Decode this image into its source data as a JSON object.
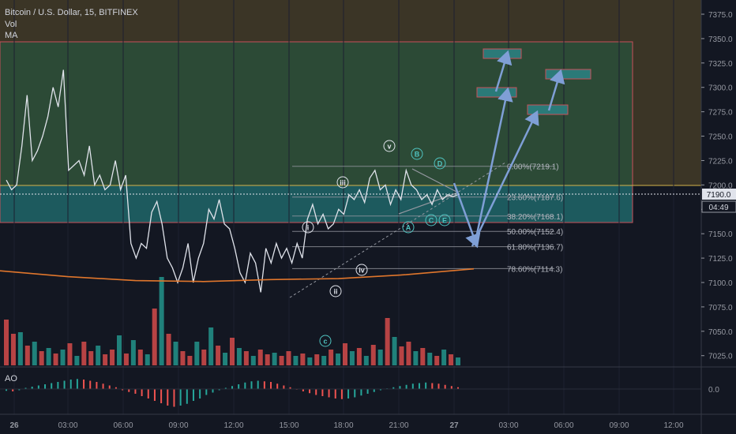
{
  "header": {
    "symbol_line": "Bitcoin / U.S. Dollar, 15, BITFINEX",
    "indicator_vol": "Vol",
    "indicator_ma": "MA"
  },
  "price_axis": {
    "ticks": [
      "7375.0",
      "7350.0",
      "7325.0",
      "7300.0",
      "7275.0",
      "7250.0",
      "7225.0",
      "7200.0",
      "7175.0",
      "7150.0",
      "7125.0",
      "7100.0",
      "7075.0",
      "7050.0",
      "7025.0"
    ],
    "current_price": "7190.0",
    "countdown": "04:49"
  },
  "time_axis": {
    "ticks": [
      "26",
      "03:00",
      "06:00",
      "09:00",
      "12:00",
      "15:00",
      "18:00",
      "21:00",
      "27",
      "03:00",
      "06:00",
      "09:00",
      "12:00"
    ]
  },
  "ao_panel": {
    "label": "AO",
    "zero_label": "0.0"
  },
  "fib_levels": [
    {
      "label": "0.00%(7219.1)",
      "price": 7219.1
    },
    {
      "label": "23.60%(7187.6)",
      "price": 7187.6
    },
    {
      "label": "38.20%(7168.1)",
      "price": 7168.1
    },
    {
      "label": "50.00%(7152.4)",
      "price": 7152.4
    },
    {
      "label": "61.80%(7136.7)",
      "price": 7136.7
    },
    {
      "label": "78.60%(7114.3)",
      "price": 7114.3
    }
  ],
  "wave_labels": [
    "i",
    "ii",
    "iii",
    "iv",
    "v",
    "A",
    "B",
    "C",
    "D",
    "E",
    "c"
  ],
  "colors": {
    "background": "#131722",
    "price_line": "#e0e3eb",
    "up_volume": "#26a69a",
    "down_volume": "#ef5350",
    "upper_zone": "#3b3526",
    "green_zone": "#2c4a36",
    "teal_zone": "#1d5a5e",
    "arrows": "#7f9fd6",
    "target_box": "#2b7a78",
    "ma_line": "#e0762c"
  },
  "chart_data": {
    "type": "line",
    "title": "Bitcoin / U.S. Dollar, 15, BITFINEX",
    "timeframe": "15",
    "ylim": [
      7010,
      7390
    ],
    "current_price": 7190.0,
    "close_series": [
      7205,
      7195,
      7200,
      7240,
      7292,
      7225,
      7235,
      7250,
      7270,
      7300,
      7280,
      7318,
      7215,
      7220,
      7225,
      7210,
      7240,
      7200,
      7210,
      7195,
      7200,
      7225,
      7195,
      7210,
      7140,
      7125,
      7140,
      7135,
      7172,
      7183,
      7160,
      7125,
      7115,
      7100,
      7115,
      7140,
      7100,
      7125,
      7140,
      7175,
      7165,
      7185,
      7160,
      7155,
      7135,
      7110,
      7100,
      7130,
      7120,
      7090,
      7135,
      7120,
      7140,
      7125,
      7135,
      7120,
      7140,
      7125,
      7165,
      7180,
      7160,
      7170,
      7155,
      7160,
      7175,
      7170,
      7190,
      7185,
      7195,
      7182,
      7207,
      7215,
      7195,
      7200,
      7180,
      7195,
      7185,
      7215,
      7200,
      7195,
      7185,
      7190,
      7180,
      7195,
      7185,
      7190,
      7188,
      7190
    ],
    "moving_average": [
      7112,
      7106,
      7102,
      7101,
      7103,
      7104,
      7108,
      7114
    ],
    "volume": [
      {
        "v": 58,
        "up": false
      },
      {
        "v": 40,
        "up": false
      },
      {
        "v": 42,
        "up": true
      },
      {
        "v": 25,
        "up": false
      },
      {
        "v": 30,
        "up": true
      },
      {
        "v": 18,
        "up": false
      },
      {
        "v": 22,
        "up": true
      },
      {
        "v": 15,
        "up": false
      },
      {
        "v": 20,
        "up": true
      },
      {
        "v": 28,
        "up": false
      },
      {
        "v": 12,
        "up": true
      },
      {
        "v": 30,
        "up": false
      },
      {
        "v": 18,
        "up": false
      },
      {
        "v": 25,
        "up": true
      },
      {
        "v": 14,
        "up": false
      },
      {
        "v": 20,
        "up": false
      },
      {
        "v": 38,
        "up": true
      },
      {
        "v": 15,
        "up": false
      },
      {
        "v": 32,
        "up": true
      },
      {
        "v": 20,
        "up": false
      },
      {
        "v": 14,
        "up": true
      },
      {
        "v": 72,
        "up": false
      },
      {
        "v": 112,
        "up": true
      },
      {
        "v": 40,
        "up": false
      },
      {
        "v": 30,
        "up": true
      },
      {
        "v": 18,
        "up": false
      },
      {
        "v": 12,
        "up": false
      },
      {
        "v": 30,
        "up": true
      },
      {
        "v": 20,
        "up": false
      },
      {
        "v": 48,
        "up": true
      },
      {
        "v": 25,
        "up": false
      },
      {
        "v": 16,
        "up": true
      },
      {
        "v": 35,
        "up": false
      },
      {
        "v": 22,
        "up": true
      },
      {
        "v": 18,
        "up": false
      },
      {
        "v": 12,
        "up": true
      },
      {
        "v": 20,
        "up": false
      },
      {
        "v": 14,
        "up": false
      },
      {
        "v": 16,
        "up": true
      },
      {
        "v": 12,
        "up": false
      },
      {
        "v": 18,
        "up": false
      },
      {
        "v": 12,
        "up": true
      },
      {
        "v": 15,
        "up": false
      },
      {
        "v": 10,
        "up": true
      },
      {
        "v": 14,
        "up": false
      },
      {
        "v": 12,
        "up": true
      },
      {
        "v": 20,
        "up": false
      },
      {
        "v": 15,
        "up": true
      },
      {
        "v": 28,
        "up": false
      },
      {
        "v": 18,
        "up": true
      },
      {
        "v": 22,
        "up": false
      },
      {
        "v": 12,
        "up": true
      },
      {
        "v": 26,
        "up": false
      },
      {
        "v": 20,
        "up": true
      },
      {
        "v": 60,
        "up": false
      },
      {
        "v": 36,
        "up": true
      },
      {
        "v": 24,
        "up": false
      },
      {
        "v": 30,
        "up": false
      },
      {
        "v": 18,
        "up": true
      },
      {
        "v": 22,
        "up": false
      },
      {
        "v": 16,
        "up": true
      },
      {
        "v": 12,
        "up": false
      },
      {
        "v": 20,
        "up": true
      },
      {
        "v": 14,
        "up": false
      },
      {
        "v": 10,
        "up": true
      }
    ],
    "ao": [
      -3,
      -4,
      -2,
      2,
      4,
      6,
      8,
      10,
      12,
      14,
      16,
      17,
      16,
      14,
      12,
      9,
      6,
      3,
      -2,
      -5,
      -8,
      -12,
      -16,
      -20,
      -24,
      -28,
      -30,
      -28,
      -25,
      -20,
      -16,
      -10,
      -6,
      -2,
      2,
      5,
      8,
      11,
      13,
      14,
      13,
      12,
      9,
      6,
      3,
      -1,
      -4,
      -7,
      -10,
      -12,
      -14,
      -16,
      -17,
      -16,
      -14,
      -11,
      -8,
      -5,
      -2,
      1,
      3,
      5,
      7,
      9,
      10,
      11,
      10,
      9,
      7,
      5,
      3
    ]
  }
}
